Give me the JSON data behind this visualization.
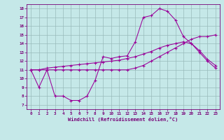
{
  "bg_color": "#c5e8e8",
  "line_color": "#990099",
  "grid_color": "#99bbbb",
  "text_color": "#770077",
  "xlabel": "Windchill (Refroidissement éolien,°C)",
  "xlim": [
    -0.5,
    23.5
  ],
  "ylim": [
    6.5,
    18.5
  ],
  "xtick_vals": [
    0,
    1,
    2,
    3,
    4,
    5,
    6,
    7,
    8,
    9,
    10,
    11,
    12,
    13,
    14,
    15,
    16,
    17,
    18,
    19,
    20,
    21,
    22,
    23
  ],
  "ytick_vals": [
    7,
    8,
    9,
    10,
    11,
    12,
    13,
    14,
    15,
    16,
    17,
    18
  ],
  "curve1_x": [
    0,
    1,
    2,
    3,
    4,
    5,
    6,
    7,
    8,
    9,
    10,
    11,
    12,
    13,
    14,
    15,
    16,
    17,
    18,
    19,
    20,
    21,
    22,
    23
  ],
  "curve1_y": [
    11.0,
    9.0,
    11.0,
    8.0,
    8.0,
    7.5,
    7.5,
    8.0,
    9.8,
    12.5,
    12.3,
    12.5,
    12.6,
    14.2,
    17.0,
    17.2,
    18.0,
    17.7,
    16.7,
    14.8,
    14.0,
    13.0,
    12.0,
    11.2
  ],
  "curve2_x": [
    0,
    1,
    2,
    3,
    4,
    5,
    6,
    7,
    8,
    9,
    10,
    11,
    12,
    13,
    14,
    15,
    16,
    17,
    18,
    19,
    20,
    21,
    22,
    23
  ],
  "curve2_y": [
    11.0,
    11.0,
    11.2,
    11.3,
    11.4,
    11.5,
    11.6,
    11.7,
    11.8,
    11.9,
    12.0,
    12.1,
    12.3,
    12.5,
    12.8,
    13.1,
    13.5,
    13.8,
    14.0,
    14.2,
    14.0,
    13.2,
    12.2,
    11.5
  ],
  "curve3_x": [
    0,
    1,
    2,
    3,
    4,
    5,
    6,
    7,
    8,
    9,
    10,
    11,
    12,
    13,
    14,
    15,
    16,
    17,
    18,
    19,
    20,
    21,
    22,
    23
  ],
  "curve3_y": [
    11.0,
    11.0,
    11.0,
    11.0,
    11.0,
    11.0,
    11.0,
    11.0,
    11.0,
    11.0,
    11.0,
    11.0,
    11.0,
    11.2,
    11.5,
    12.0,
    12.5,
    13.0,
    13.5,
    14.0,
    14.5,
    14.8,
    14.8,
    15.0
  ]
}
